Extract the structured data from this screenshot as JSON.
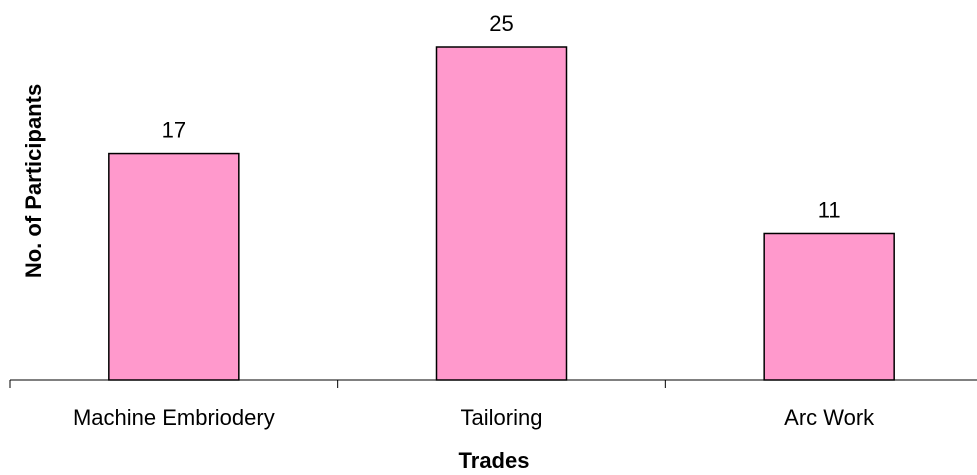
{
  "chart_data": {
    "type": "bar",
    "title": "",
    "categories": [
      "Machine Embriodery",
      "Tailoring",
      "Arc Work"
    ],
    "values": [
      17,
      25,
      11
    ],
    "data_labels": [
      "17",
      "25",
      "11"
    ],
    "xlabel": "Trades",
    "ylabel": "No. of Participants",
    "ylim": [
      0,
      25
    ],
    "grid": false,
    "legend": "none",
    "colors": {
      "bar_fill": "#FF99CC",
      "bar_stroke": "#000000",
      "axis": "#000000"
    }
  }
}
